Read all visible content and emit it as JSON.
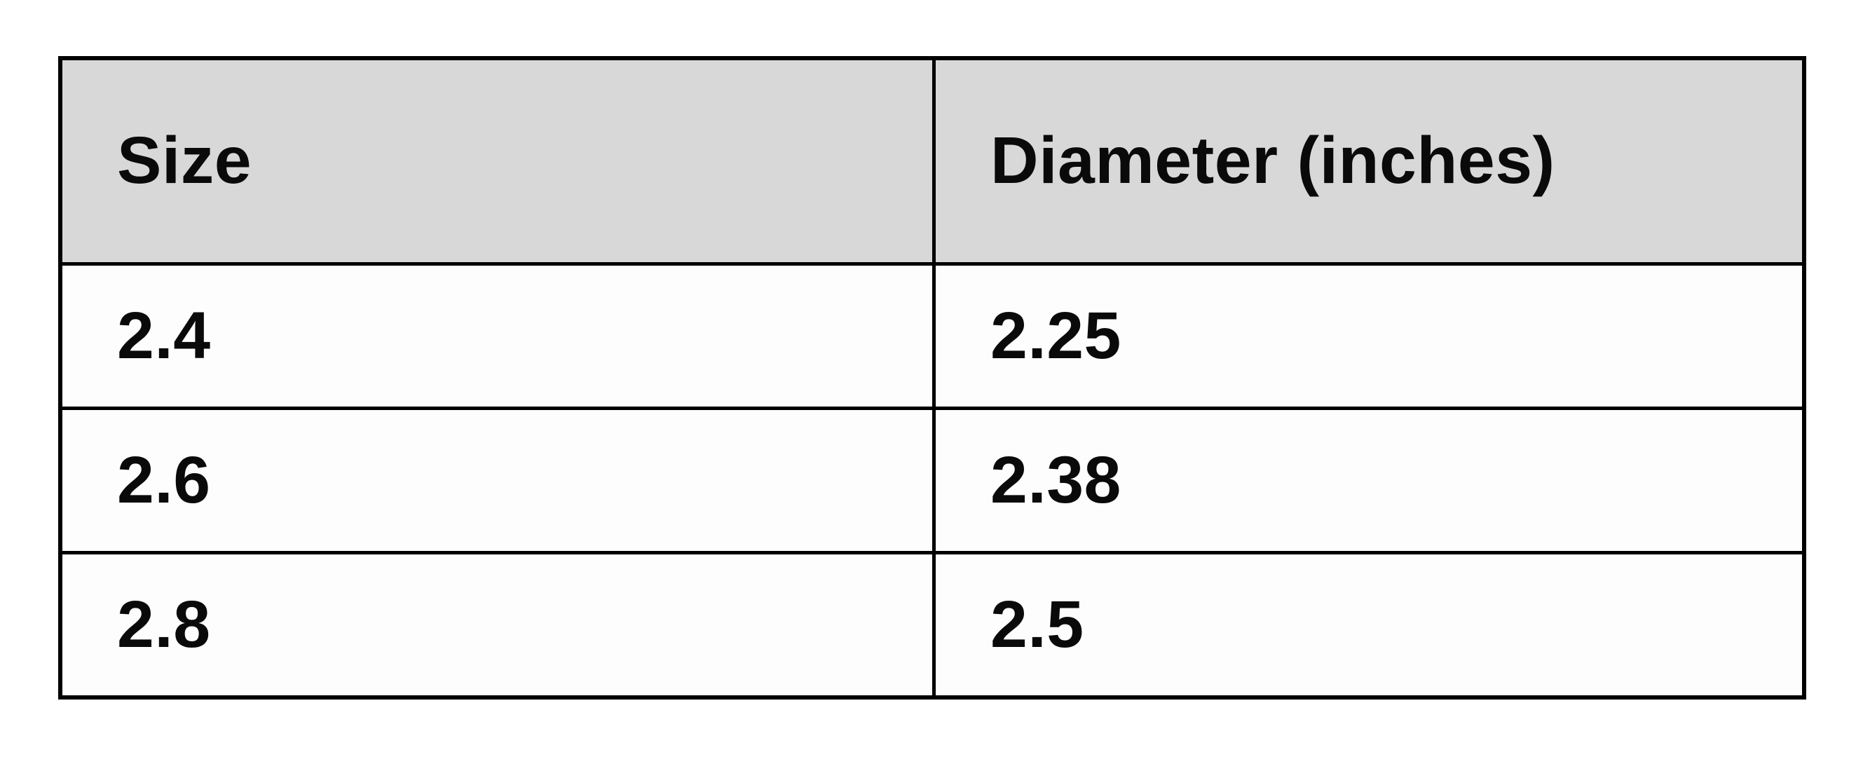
{
  "table": {
    "columns": [
      "Size",
      "Diameter (inches)"
    ],
    "rows": [
      [
        "2.4",
        "2.25"
      ],
      [
        "2.6",
        "2.38"
      ],
      [
        "2.8",
        "2.5"
      ]
    ]
  },
  "chart_data": {
    "type": "table",
    "title": "",
    "columns": [
      "Size",
      "Diameter (inches)"
    ],
    "rows": [
      [
        2.4,
        2.25
      ],
      [
        2.6,
        2.38
      ],
      [
        2.8,
        2.5
      ]
    ],
    "header_bg_color": "#d8d8d8",
    "body_bg_color": "#fdfdfd",
    "border_color": "#000000",
    "text_color": "#0a0a0a"
  }
}
